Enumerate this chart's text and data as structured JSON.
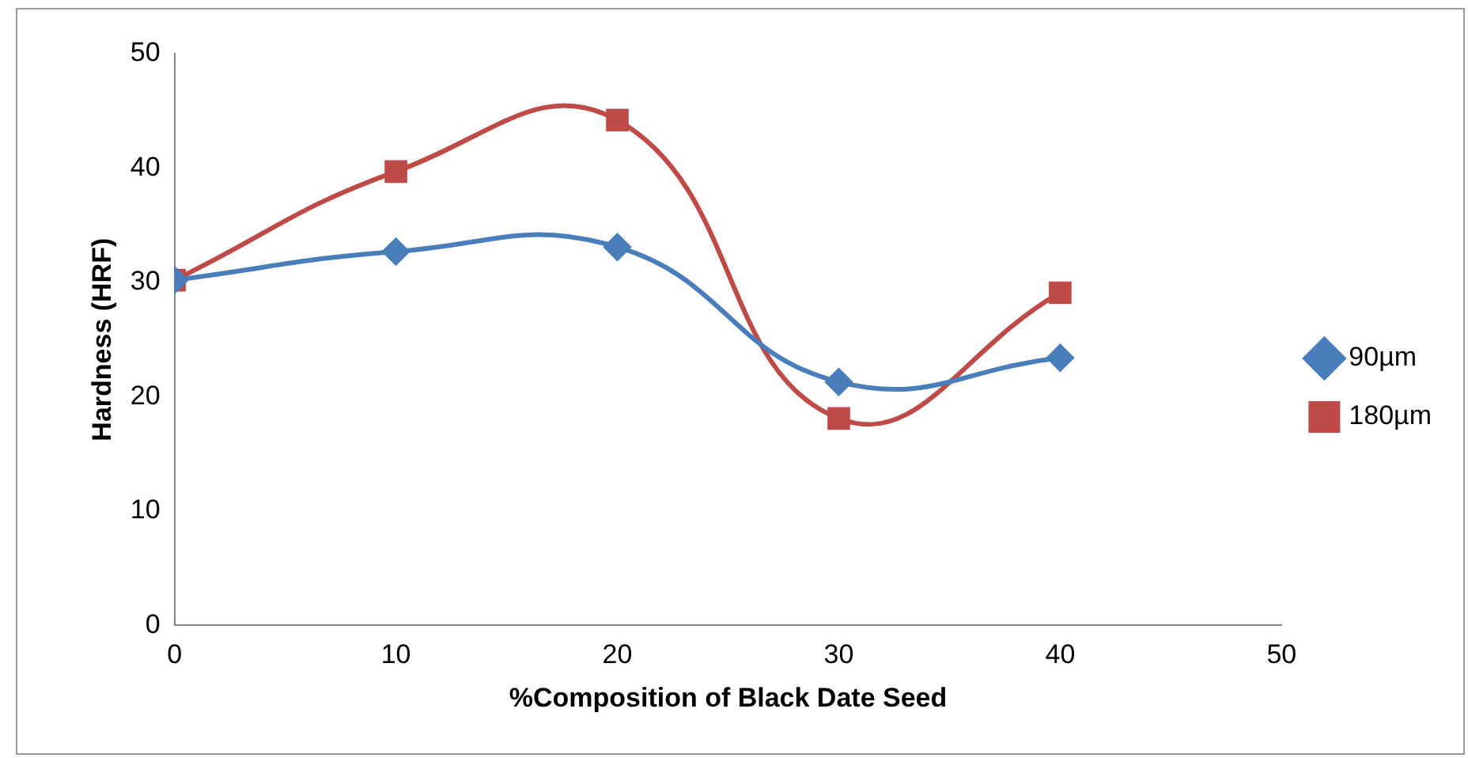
{
  "chart_data": {
    "type": "line",
    "xlabel": "%Composition of Black Date Seed",
    "ylabel": "Hardness (HRF)",
    "x": [
      0,
      10,
      20,
      30,
      40
    ],
    "xlim": [
      0,
      50
    ],
    "xticks": [
      0,
      10,
      20,
      30,
      40,
      50
    ],
    "ylim": [
      0,
      50
    ],
    "yticks": [
      0,
      10,
      20,
      30,
      40,
      50
    ],
    "grid": false,
    "legend": "right",
    "line_style": "solid",
    "series": [
      {
        "name": "90µm",
        "color": "#4a7ebb",
        "marker": "diamond",
        "values": [
          30.2,
          32.7,
          33.1,
          21.3,
          23.4
        ]
      },
      {
        "name": "180µm",
        "color": "#be4b48",
        "marker": "square",
        "values": [
          30.2,
          39.7,
          44.2,
          18.1,
          29.1
        ]
      }
    ]
  }
}
